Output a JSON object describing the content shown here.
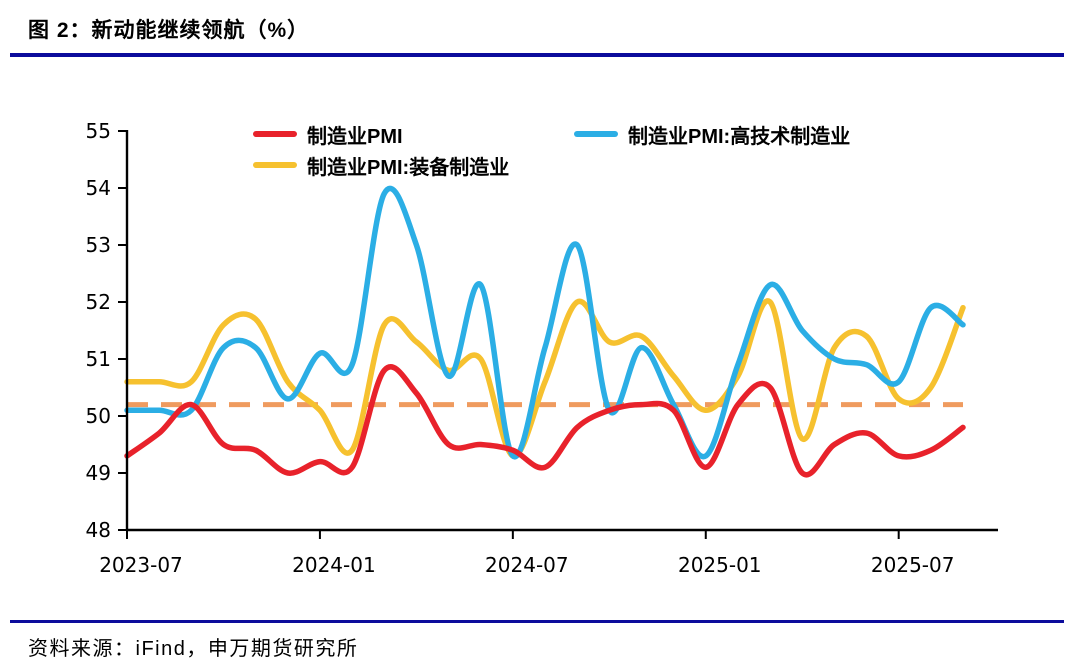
{
  "header": {
    "title": "图 2：新动能继续领航（%）"
  },
  "footer": {
    "source": "资料来源：iFind，申万期货研究所"
  },
  "colors": {
    "rule_navy": "#0c0c9c",
    "axis_black": "#000000",
    "reference_orange": "#ef9b5f",
    "manufacturing_red": "#e8222b",
    "hightech_blue": "#2baee5",
    "equipment_yellow": "#f6c12f"
  },
  "chart_data": {
    "type": "line",
    "title": "图 2：新动能继续领航（%）",
    "xlabel": "",
    "ylabel": "",
    "ylim": [
      48,
      55
    ],
    "y_ticks": [
      48,
      49,
      50,
      51,
      52,
      53,
      54,
      55
    ],
    "grid": false,
    "legend_position": "top",
    "x": [
      "2023-07",
      "2023-08",
      "2023-09",
      "2023-10",
      "2023-11",
      "2023-12",
      "2024-01",
      "2024-02",
      "2024-03",
      "2024-04",
      "2024-05",
      "2024-06",
      "2024-07",
      "2024-08",
      "2024-09",
      "2024-10",
      "2024-11",
      "2024-12",
      "2025-01",
      "2025-02",
      "2025-03",
      "2025-04",
      "2025-05",
      "2025-06",
      "2025-07",
      "2025-08",
      "2025-09"
    ],
    "x_tick_indices": [
      0,
      6,
      12,
      18,
      24
    ],
    "x_tick_labels": [
      "2023-07",
      "2024-01",
      "2024-07",
      "2025-01",
      "2025-07"
    ],
    "reference_line": {
      "value": 50.2,
      "style": "dashed",
      "color": "#ef9b5f"
    },
    "series": [
      {
        "name": "制造业PMI",
        "color": "#e8222b",
        "values": [
          49.3,
          49.7,
          50.2,
          49.5,
          49.4,
          49.0,
          49.2,
          49.1,
          50.8,
          50.4,
          49.5,
          49.5,
          49.4,
          49.1,
          49.8,
          50.1,
          50.2,
          50.1,
          49.1,
          50.2,
          50.5,
          49.0,
          49.5,
          49.7,
          49.3,
          49.4,
          49.8
        ]
      },
      {
        "name": "制造业PMI:高技术制造业",
        "color": "#2baee5",
        "values": [
          50.1,
          50.1,
          50.1,
          51.2,
          51.2,
          50.3,
          51.1,
          50.9,
          53.9,
          53.0,
          50.7,
          52.3,
          49.3,
          51.2,
          53.0,
          50.1,
          51.2,
          50.2,
          49.3,
          50.9,
          52.3,
          51.5,
          51.0,
          50.9,
          50.6,
          51.9,
          51.6
        ]
      },
      {
        "name": "制造业PMI:装备制造业",
        "color": "#f6c12f",
        "values": [
          50.6,
          50.6,
          50.6,
          51.6,
          51.7,
          50.6,
          50.1,
          49.4,
          51.6,
          51.3,
          50.8,
          51.0,
          49.3,
          50.6,
          52.0,
          51.3,
          51.4,
          50.7,
          50.1,
          50.7,
          52.0,
          49.6,
          51.2,
          51.4,
          50.3,
          50.5,
          51.9
        ]
      }
    ]
  }
}
